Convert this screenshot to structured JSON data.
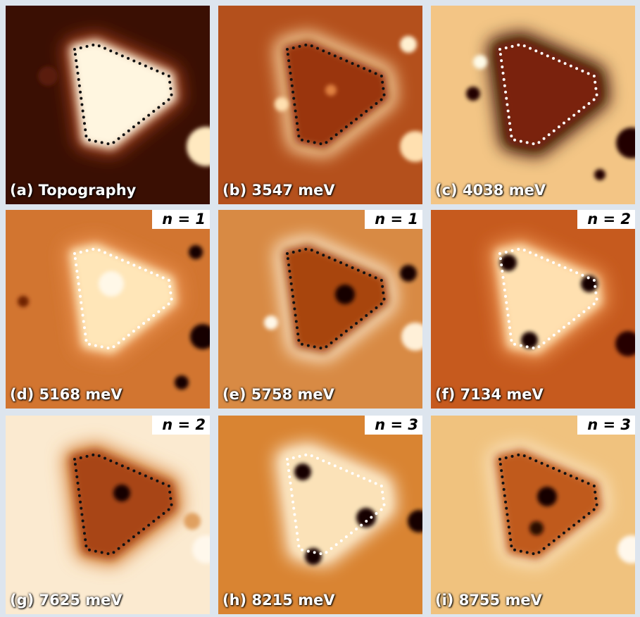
{
  "panels": [
    {
      "label": "(a) Topography"
    },
    {
      "label": "(b) 3547 meV"
    },
    {
      "label": "(c) 4038 meV"
    },
    {
      "label": "(d) 5168 meV",
      "badge": "n = 1"
    },
    {
      "label": "(e) 5758 meV",
      "badge": "n = 1"
    },
    {
      "label": "(f) 7134 meV",
      "badge": "n = 2"
    },
    {
      "label": "(g) 7625 meV",
      "badge": "n = 2"
    },
    {
      "label": "(h) 8215 meV",
      "badge": "n = 3"
    },
    {
      "label": "(i) 8755 meV",
      "badge": "n = 3"
    }
  ]
}
